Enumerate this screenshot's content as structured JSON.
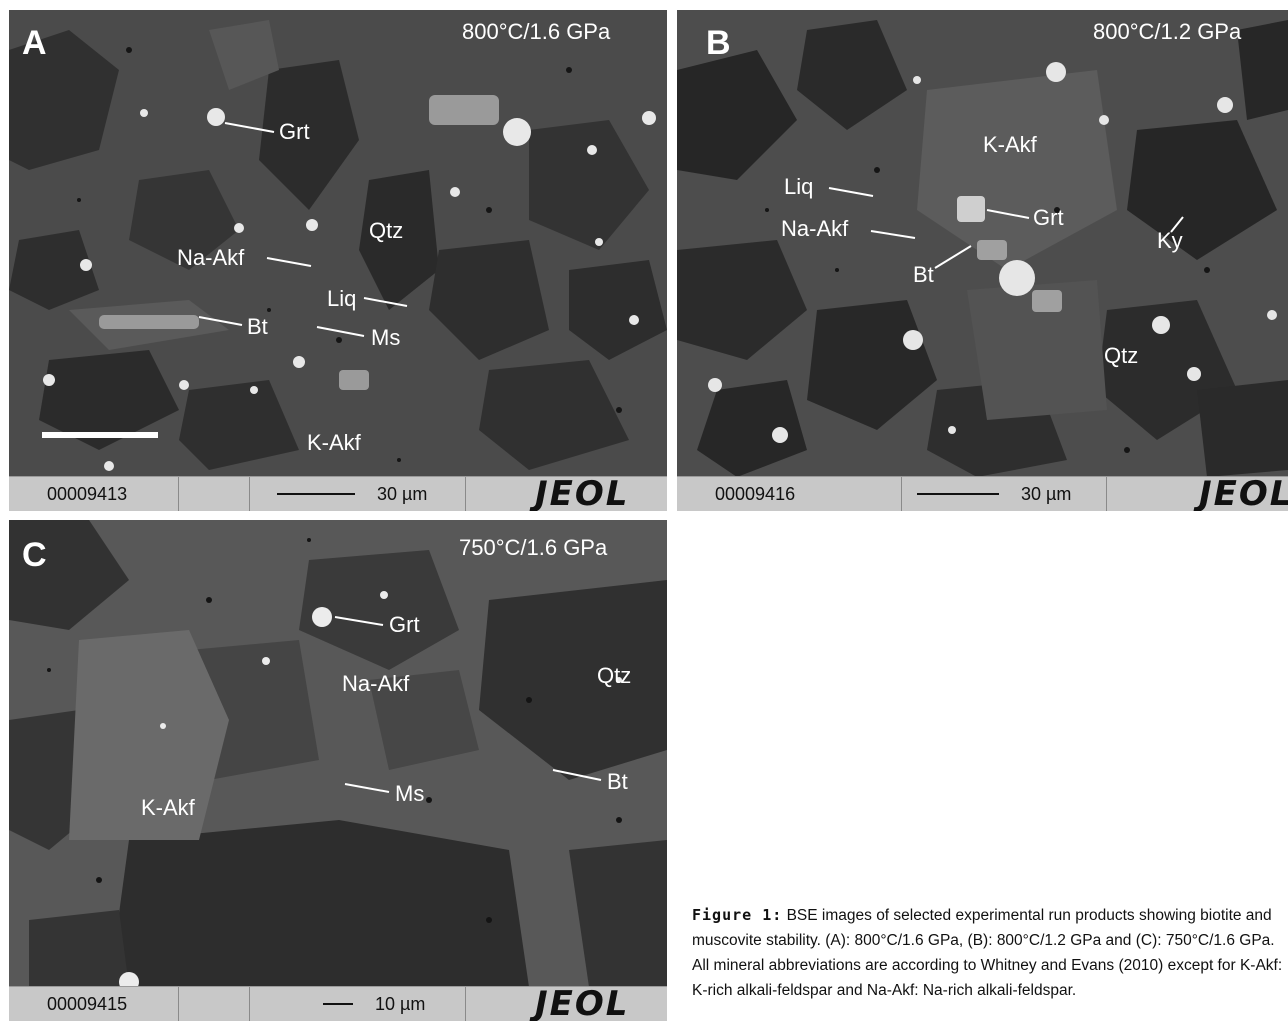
{
  "figure": {
    "panels": [
      {
        "letter": "A",
        "condition": "800°C/1.6 GPa",
        "labels": [
          "Grt",
          "Qtz",
          "Na-Akf",
          "Liq",
          "Bt",
          "Ms",
          "K-Akf"
        ],
        "databar": {
          "id": "00009413",
          "scale": "30 µm",
          "brand": "JEOL"
        }
      },
      {
        "letter": "B",
        "condition": "800°C/1.2 GPa",
        "labels": [
          "K-Akf",
          "Liq",
          "Na-Akf",
          "Grt",
          "Ky",
          "Bt",
          "Qtz"
        ],
        "databar": {
          "id": "00009416",
          "scale": "30 µm",
          "brand": "JEOL"
        }
      },
      {
        "letter": "C",
        "condition": "750°C/1.6 GPa",
        "labels": [
          "Grt",
          "Na-Akf",
          "Qtz",
          "K-Akf",
          "Ms",
          "Bt"
        ],
        "databar": {
          "id": "00009415",
          "scale": "10 µm",
          "brand": "JEOL"
        }
      }
    ],
    "caption": {
      "label": "Figure 1:",
      "text": "BSE images of selected experimental run products showing biotite and muscovite stability. (A): 800°C/1.6 GPa, (B): 800°C/1.2 GPa and (C): 750°C/1.6 GPa. All mineral abbreviations are according to Whitney and Evans (2010) except for K-Akf: K-rich alkali-feldspar and Na-Akf: Na-rich alkali-feldspar."
    }
  }
}
